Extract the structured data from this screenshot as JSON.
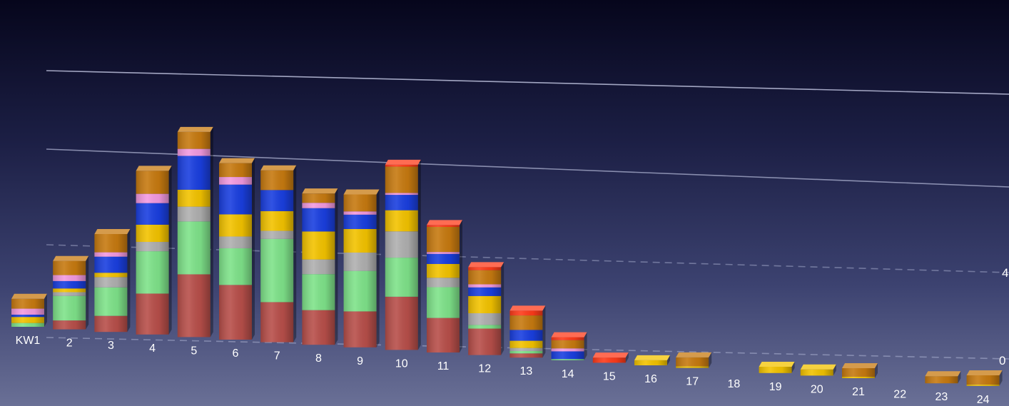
{
  "chart_data": {
    "type": "bar",
    "stacked": true,
    "categories": [
      "KW1",
      "2",
      "3",
      "4",
      "5",
      "6",
      "7",
      "8",
      "9",
      "10",
      "11",
      "12",
      "13",
      "14",
      "15",
      "16",
      "17",
      "18",
      "19",
      "20",
      "21",
      "22",
      "23",
      "24"
    ],
    "y_tick_labels": [
      "0",
      "4"
    ],
    "grid": true,
    "series": [
      {
        "color": "#b84f4a",
        "values": [
          0,
          1.2,
          2.2,
          5.7,
          8.9,
          7.9,
          5.9,
          5.2,
          5.5,
          8.3,
          5.5,
          4.3,
          0.7,
          0,
          0,
          0,
          0,
          0,
          0,
          0,
          0,
          0,
          0,
          0
        ]
      },
      {
        "color": "#7fe38a",
        "values": [
          0.5,
          3.3,
          3.9,
          5.9,
          7.5,
          5.3,
          9.3,
          5.4,
          6.2,
          6.1,
          4.9,
          0.6,
          0.4,
          0.2,
          0,
          0,
          0,
          0,
          0,
          0,
          0,
          0,
          0,
          0
        ]
      },
      {
        "color": "#b0b0b0",
        "values": [
          0,
          0.5,
          1.4,
          1.3,
          2.1,
          1.7,
          1.2,
          2.2,
          2.8,
          4.1,
          1.5,
          1.9,
          0.5,
          0,
          0,
          0,
          0,
          0,
          0,
          0,
          0,
          0,
          0,
          0
        ]
      },
      {
        "color": "#f3c300",
        "values": [
          0.8,
          0.5,
          0.6,
          2.4,
          2.4,
          3.2,
          2.9,
          4.2,
          3.6,
          3.3,
          2.2,
          2.8,
          1.2,
          0,
          0,
          0.9,
          0.3,
          0,
          1.2,
          1.2,
          0.3,
          0,
          0,
          0.3
        ]
      },
      {
        "color": "#1a3fe0",
        "values": [
          0.3,
          1.0,
          2.2,
          3.0,
          4.8,
          4.3,
          3.1,
          3.5,
          2.2,
          2.4,
          1.6,
          1.4,
          1.8,
          1.3,
          0,
          0,
          0,
          0,
          0,
          0,
          0,
          0,
          0,
          0
        ]
      },
      {
        "color": "#f39ae0",
        "values": [
          0.8,
          0.8,
          0.6,
          1.3,
          1.0,
          1.1,
          0,
          0.8,
          0.5,
          0.3,
          0.3,
          0.5,
          0,
          0.5,
          0,
          0,
          0,
          0,
          0,
          0,
          0,
          0,
          0,
          0
        ]
      },
      {
        "color": "#c77a10",
        "values": [
          1.3,
          1.9,
          2.5,
          3.2,
          2.4,
          2.0,
          2.9,
          1.4,
          2.6,
          4.1,
          4.0,
          2.3,
          2.4,
          1.4,
          0,
          0,
          1.6,
          0,
          0,
          0,
          1.7,
          0,
          1.5,
          2.0
        ]
      },
      {
        "color": "#ff3b1a",
        "values": [
          0,
          0,
          0,
          0,
          0,
          0,
          0,
          0,
          0,
          0.3,
          0.3,
          0.5,
          0.8,
          0.5,
          0.9,
          0,
          0,
          0,
          0,
          0,
          0,
          0,
          0,
          0
        ]
      }
    ]
  }
}
